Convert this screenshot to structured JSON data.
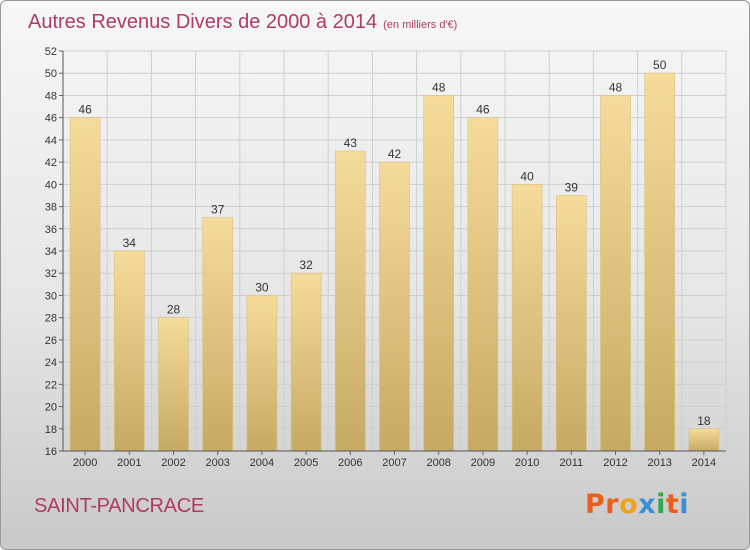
{
  "header": {
    "title": "Autres Revenus Divers de 2000 à 2014",
    "subtitle": "(en milliers d'€)"
  },
  "footer": {
    "commune": "SAINT-PANCRACE",
    "logo_text": "Proxiti",
    "logo_colors": [
      "#e8601c",
      "#e8601c",
      "#f0a21a",
      "#3b8fd6",
      "#2fa84f",
      "#e8601c",
      "#3b8fd6"
    ]
  },
  "colors": {
    "bar_light": "#f6dc9a",
    "bar_dark": "#c6aa63",
    "grid": "#cfcfcf",
    "text": "#333333",
    "accent": "#b03b63"
  },
  "chart_data": {
    "type": "bar",
    "categories": [
      "2000",
      "2001",
      "2002",
      "2003",
      "2004",
      "2005",
      "2006",
      "2007",
      "2008",
      "2009",
      "2010",
      "2011",
      "2012",
      "2013",
      "2014"
    ],
    "values": [
      46,
      34,
      28,
      37,
      30,
      32,
      43,
      42,
      48,
      46,
      40,
      39,
      48,
      50,
      18
    ],
    "ylim": [
      16,
      52
    ],
    "yticks": [
      16,
      18,
      20,
      22,
      24,
      26,
      28,
      30,
      32,
      34,
      36,
      38,
      40,
      42,
      44,
      46,
      48,
      50,
      52
    ],
    "grid": true,
    "data_labels": true
  }
}
